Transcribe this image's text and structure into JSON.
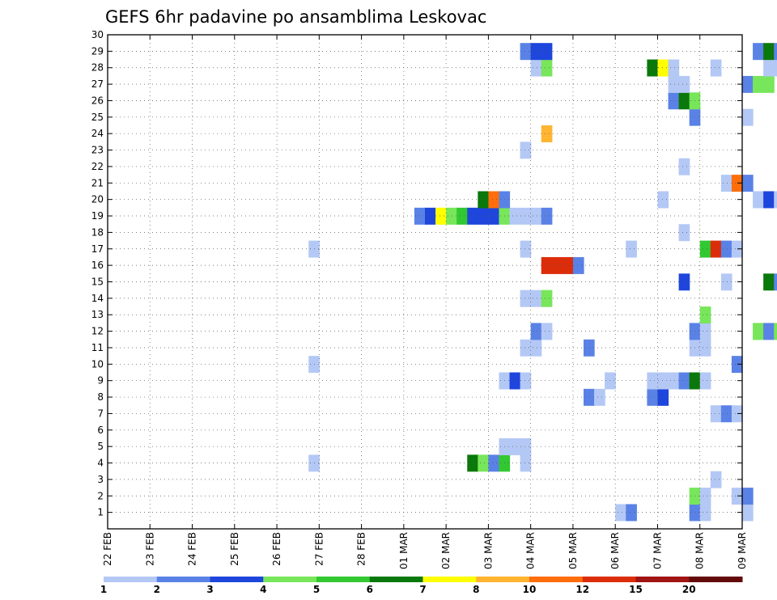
{
  "chart_data": {
    "type": "heatmap",
    "title": "GEFS 6hr padavine po ansamblima Leskovac",
    "x_tick_labels": [
      "22 FEB",
      "23 FEB",
      "24 FEB",
      "25 FEB",
      "26 FEB",
      "27 FEB",
      "28 FEB",
      "01 MAR",
      "02 MAR",
      "03 MAR",
      "04 MAR",
      "05 MAR",
      "06 MAR",
      "07 MAR",
      "08 MAR",
      "09 MAR"
    ],
    "y_tick_labels": [
      "1",
      "2",
      "3",
      "4",
      "5",
      "6",
      "7",
      "8",
      "9",
      "10",
      "11",
      "12",
      "13",
      "14",
      "15",
      "16",
      "17",
      "18",
      "19",
      "20",
      "21",
      "22",
      "23",
      "24",
      "25",
      "26",
      "27",
      "28",
      "29",
      "30"
    ],
    "x_range_days": [
      0,
      15
    ],
    "steps_per_day": 4,
    "ylim": [
      0,
      30
    ],
    "grid": "dotted",
    "colorbar_labels": [
      "1",
      "2",
      "3",
      "4",
      "5",
      "6",
      "7",
      "8",
      "10",
      "12",
      "15",
      "20"
    ],
    "colorbar_colors": [
      "#b4c8f5",
      "#5a82e6",
      "#1e46dc",
      "#78e65a",
      "#32c832",
      "#0a780a",
      "#ffff00",
      "#ffb432",
      "#ff6e0a",
      "#dc2d0a",
      "#a01414",
      "#640a0a"
    ],
    "cells": [
      [
        1,
        48,
        0
      ],
      [
        1,
        49,
        1
      ],
      [
        1,
        55,
        1
      ],
      [
        1,
        56,
        0
      ],
      [
        1,
        60,
        0
      ],
      [
        1,
        115,
        0
      ],
      [
        2,
        55,
        3
      ],
      [
        2,
        56,
        0
      ],
      [
        2,
        59,
        0
      ],
      [
        2,
        60,
        1
      ],
      [
        2,
        101,
        2
      ],
      [
        2,
        102,
        2
      ],
      [
        2,
        103,
        1
      ],
      [
        3,
        57,
        0
      ],
      [
        3,
        66,
        0
      ],
      [
        3,
        67,
        0
      ],
      [
        3,
        80,
        0
      ],
      [
        3,
        81,
        0
      ],
      [
        3,
        82,
        1
      ],
      [
        4,
        19,
        0
      ],
      [
        4,
        34,
        5
      ],
      [
        4,
        35,
        3
      ],
      [
        4,
        36,
        1
      ],
      [
        4,
        37,
        4
      ],
      [
        4,
        39,
        0
      ],
      [
        4,
        82,
        3
      ],
      [
        4,
        83,
        4
      ],
      [
        4,
        84,
        3
      ],
      [
        4,
        85,
        5
      ],
      [
        4,
        86,
        1
      ],
      [
        4,
        87,
        0
      ],
      [
        5,
        37,
        0
      ],
      [
        5,
        38,
        0
      ],
      [
        5,
        39,
        0
      ],
      [
        5,
        82,
        3
      ],
      [
        5,
        83,
        1
      ],
      [
        7,
        57,
        0
      ],
      [
        7,
        58,
        1
      ],
      [
        7,
        59,
        0
      ],
      [
        7,
        79,
        1
      ],
      [
        7,
        80,
        1
      ],
      [
        7,
        81,
        2
      ],
      [
        7,
        82,
        2
      ],
      [
        7,
        95,
        2
      ],
      [
        7,
        96,
        2
      ],
      [
        7,
        115,
        5
      ],
      [
        7,
        116,
        2
      ],
      [
        8,
        45,
        1
      ],
      [
        8,
        46,
        0
      ],
      [
        8,
        51,
        1
      ],
      [
        8,
        52,
        2
      ],
      [
        8,
        111,
        0
      ],
      [
        8,
        112,
        1
      ],
      [
        8,
        113,
        0
      ],
      [
        8,
        114,
        2
      ],
      [
        8,
        115,
        0
      ],
      [
        9,
        37,
        0
      ],
      [
        9,
        38,
        2
      ],
      [
        9,
        39,
        0
      ],
      [
        9,
        47,
        0
      ],
      [
        9,
        51,
        0
      ],
      [
        9,
        52,
        0
      ],
      [
        9,
        53,
        0
      ],
      [
        9,
        54,
        1
      ],
      [
        9,
        55,
        5
      ],
      [
        9,
        56,
        0
      ],
      [
        10,
        19,
        0
      ],
      [
        10,
        59,
        1
      ],
      [
        10,
        101,
        0
      ],
      [
        10,
        102,
        1
      ],
      [
        10,
        103,
        0
      ],
      [
        10,
        104,
        0
      ],
      [
        10,
        105,
        3
      ],
      [
        10,
        106,
        1
      ],
      [
        10,
        107,
        0
      ],
      [
        11,
        39,
        0
      ],
      [
        11,
        40,
        0
      ],
      [
        11,
        45,
        1
      ],
      [
        11,
        55,
        0
      ],
      [
        11,
        56,
        0
      ],
      [
        11,
        102,
        0
      ],
      [
        11,
        107,
        0
      ],
      [
        11,
        113,
        1
      ],
      [
        11,
        116,
        7
      ],
      [
        12,
        40,
        1
      ],
      [
        12,
        41,
        0
      ],
      [
        12,
        55,
        1
      ],
      [
        12,
        56,
        0
      ],
      [
        12,
        61,
        3
      ],
      [
        12,
        62,
        1
      ],
      [
        12,
        63,
        3
      ],
      [
        12,
        64,
        0
      ],
      [
        12,
        111,
        0
      ],
      [
        13,
        56,
        3
      ],
      [
        13,
        71,
        0
      ],
      [
        13,
        113,
        0
      ],
      [
        13,
        114,
        1
      ],
      [
        13,
        115,
        1
      ],
      [
        14,
        39,
        0
      ],
      [
        14,
        40,
        0
      ],
      [
        14,
        41,
        3
      ],
      [
        14,
        71,
        0
      ],
      [
        14,
        72,
        1
      ],
      [
        14,
        73,
        1
      ],
      [
        14,
        74,
        1
      ],
      [
        14,
        75,
        1
      ],
      [
        14,
        76,
        3
      ],
      [
        14,
        89,
        1
      ],
      [
        14,
        94,
        3
      ],
      [
        14,
        95,
        5
      ],
      [
        14,
        109,
        0
      ],
      [
        14,
        110,
        0
      ],
      [
        14,
        114,
        1
      ],
      [
        14,
        115,
        3
      ],
      [
        15,
        54,
        2
      ],
      [
        15,
        58,
        0
      ],
      [
        15,
        62,
        5
      ],
      [
        15,
        63,
        1
      ],
      [
        16,
        41,
        9
      ],
      [
        16,
        42,
        9
      ],
      [
        16,
        43,
        9
      ],
      [
        16,
        44,
        1
      ],
      [
        17,
        19,
        0
      ],
      [
        17,
        39,
        0
      ],
      [
        17,
        49,
        0
      ],
      [
        17,
        56,
        4
      ],
      [
        17,
        57,
        9
      ],
      [
        17,
        58,
        1
      ],
      [
        17,
        59,
        0
      ],
      [
        17,
        105,
        0
      ],
      [
        17,
        110,
        4
      ],
      [
        17,
        111,
        0
      ],
      [
        18,
        54,
        0
      ],
      [
        18,
        68,
        1
      ],
      [
        18,
        69,
        4
      ],
      [
        18,
        72,
        0
      ],
      [
        18,
        99,
        1
      ],
      [
        18,
        100,
        5
      ],
      [
        18,
        101,
        0
      ],
      [
        19,
        29,
        1
      ],
      [
        19,
        30,
        2
      ],
      [
        19,
        31,
        6
      ],
      [
        19,
        32,
        3
      ],
      [
        19,
        33,
        4
      ],
      [
        19,
        34,
        2
      ],
      [
        19,
        35,
        2
      ],
      [
        19,
        36,
        2
      ],
      [
        19,
        37,
        3
      ],
      [
        19,
        38,
        0
      ],
      [
        19,
        39,
        0
      ],
      [
        19,
        40,
        0
      ],
      [
        19,
        41,
        1
      ],
      [
        19,
        75,
        0
      ],
      [
        19,
        76,
        0
      ],
      [
        19,
        116,
        0
      ],
      [
        20,
        35,
        5
      ],
      [
        20,
        36,
        8
      ],
      [
        20,
        37,
        1
      ],
      [
        20,
        52,
        0
      ],
      [
        20,
        61,
        0
      ],
      [
        20,
        62,
        2
      ],
      [
        20,
        63,
        0
      ],
      [
        20,
        98,
        1
      ],
      [
        21,
        58,
        0
      ],
      [
        21,
        59,
        8
      ],
      [
        21,
        60,
        1
      ],
      [
        21,
        81,
        0
      ],
      [
        21,
        82,
        1
      ],
      [
        21,
        83,
        0
      ],
      [
        22,
        54,
        0
      ],
      [
        22,
        75,
        0
      ],
      [
        22,
        76,
        1
      ],
      [
        22,
        87,
        4
      ],
      [
        22,
        88,
        4
      ],
      [
        22,
        89,
        0
      ],
      [
        22,
        90,
        0
      ],
      [
        22,
        91,
        0
      ],
      [
        22,
        92,
        0
      ],
      [
        23,
        39,
        0
      ],
      [
        23,
        81,
        2
      ],
      [
        23,
        82,
        3
      ],
      [
        23,
        99,
        0
      ],
      [
        23,
        100,
        2
      ],
      [
        23,
        108,
        2
      ],
      [
        23,
        109,
        1
      ],
      [
        24,
        41,
        7
      ],
      [
        25,
        55,
        1
      ],
      [
        25,
        60,
        0
      ],
      [
        25,
        81,
        0
      ],
      [
        25,
        82,
        8
      ],
      [
        25,
        83,
        3
      ],
      [
        25,
        100,
        1
      ],
      [
        25,
        101,
        0
      ],
      [
        26,
        53,
        1
      ],
      [
        26,
        54,
        5
      ],
      [
        26,
        55,
        3
      ],
      [
        26,
        75,
        0
      ],
      [
        26,
        76,
        0
      ],
      [
        26,
        88,
        0
      ],
      [
        26,
        111,
        0
      ],
      [
        27,
        53,
        0
      ],
      [
        27,
        54,
        0
      ],
      [
        27,
        60,
        1
      ],
      [
        27,
        61,
        3
      ],
      [
        27,
        62,
        3
      ],
      [
        27,
        116,
        1
      ],
      [
        28,
        40,
        0
      ],
      [
        28,
        41,
        3
      ],
      [
        28,
        51,
        5
      ],
      [
        28,
        52,
        6
      ],
      [
        28,
        53,
        0
      ],
      [
        28,
        57,
        0
      ],
      [
        28,
        62,
        0
      ],
      [
        28,
        63,
        0
      ],
      [
        28,
        65,
        1
      ],
      [
        29,
        39,
        1
      ],
      [
        29,
        40,
        2
      ],
      [
        29,
        41,
        2
      ],
      [
        29,
        61,
        1
      ],
      [
        29,
        62,
        5
      ],
      [
        29,
        63,
        1
      ],
      [
        29,
        64,
        0
      ],
      [
        29,
        87,
        1
      ],
      [
        29,
        88,
        1
      ],
      [
        29,
        89,
        4
      ],
      [
        29,
        90,
        0
      ]
    ],
    "bottom_strip_cells": [
      [
        97,
        0
      ],
      [
        101,
        1
      ],
      [
        102,
        5
      ],
      [
        103,
        0
      ]
    ]
  }
}
